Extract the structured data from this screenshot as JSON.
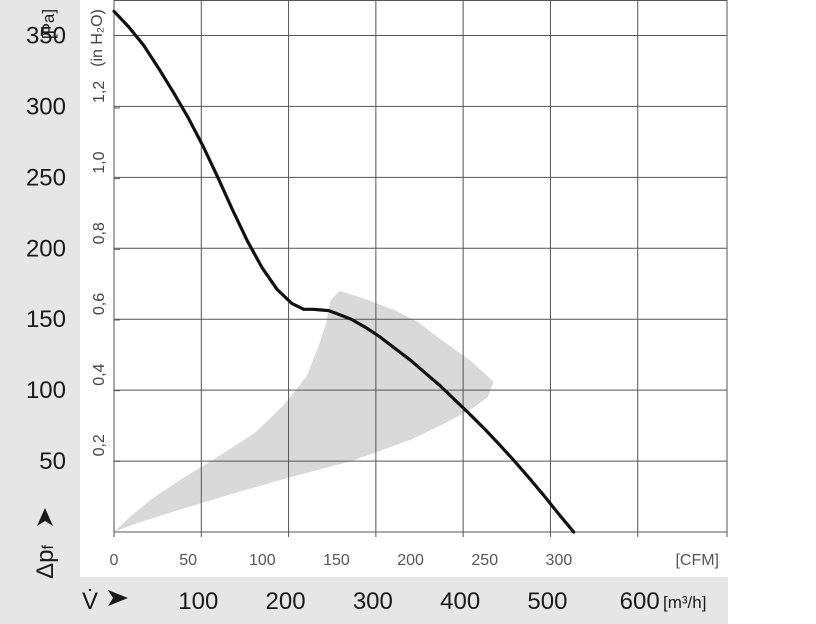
{
  "chart_data": {
    "type": "line",
    "colors": {
      "curve": "#111111",
      "grid": "#555555",
      "region": "#d9d9d9",
      "band": "#e6e6e6"
    },
    "y_axis_pa": {
      "unit": "[Pa]",
      "ticks": [
        "350",
        "300",
        "250",
        "200",
        "150",
        "100",
        "50"
      ],
      "range": [
        0,
        375
      ]
    },
    "y_axis_inh2o": {
      "unit": "(in H₂O)",
      "ticks": [
        "1,2",
        "1,0",
        "0,8",
        "0,6",
        "0,4",
        "0,2"
      ]
    },
    "y_symbol": "Δp",
    "y_symbol_sub": "f",
    "x_axis_cfm": {
      "unit": "[CFM]",
      "ticks": [
        "0",
        "50",
        "100",
        "150",
        "200",
        "250",
        "300"
      ],
      "range": [
        0,
        412
      ]
    },
    "x_axis_m3h": {
      "unit": "[m³/h]",
      "ticks": [
        "100",
        "200",
        "300",
        "400",
        "500",
        "600"
      ]
    },
    "x_symbol": "V̇",
    "series": [
      {
        "type": "line",
        "points_cfm_pa": [
          [
            0,
            367
          ],
          [
            10,
            356
          ],
          [
            20,
            343
          ],
          [
            30,
            327
          ],
          [
            40,
            310
          ],
          [
            50,
            292
          ],
          [
            60,
            272
          ],
          [
            70,
            250
          ],
          [
            80,
            227
          ],
          [
            90,
            205
          ],
          [
            100,
            186
          ],
          [
            110,
            171
          ],
          [
            120,
            161
          ],
          [
            128,
            157
          ],
          [
            134,
            157
          ],
          [
            140,
            156.5
          ],
          [
            145,
            156
          ],
          [
            150,
            154
          ],
          [
            160,
            150
          ],
          [
            170,
            144
          ],
          [
            180,
            137
          ],
          [
            190,
            129
          ],
          [
            200,
            121
          ],
          [
            210,
            112
          ],
          [
            220,
            103
          ],
          [
            230,
            93
          ],
          [
            240,
            83
          ],
          [
            250,
            72.5
          ],
          [
            260,
            61.5
          ],
          [
            270,
            50
          ],
          [
            280,
            38
          ],
          [
            290,
            25.5
          ],
          [
            300,
            12.5
          ],
          [
            310,
            0
          ]
        ]
      }
    ],
    "operating_region": [
      [
        0,
        0
      ],
      [
        10,
        10
      ],
      [
        25,
        23
      ],
      [
        45,
        37
      ],
      [
        70,
        53
      ],
      [
        95,
        70
      ],
      [
        115,
        90
      ],
      [
        130,
        110
      ],
      [
        139,
        134
      ],
      [
        143,
        147
      ],
      [
        146,
        163
      ],
      [
        152,
        170
      ],
      [
        170,
        164
      ],
      [
        190,
        156
      ],
      [
        205,
        148
      ],
      [
        220,
        136
      ],
      [
        240,
        121
      ],
      [
        256,
        106
      ],
      [
        252,
        95
      ],
      [
        240,
        86
      ],
      [
        220,
        75
      ],
      [
        200,
        65
      ],
      [
        160,
        50
      ],
      [
        120,
        39
      ],
      [
        80,
        27
      ],
      [
        45,
        16
      ],
      [
        15,
        6
      ],
      [
        0,
        0
      ]
    ]
  }
}
